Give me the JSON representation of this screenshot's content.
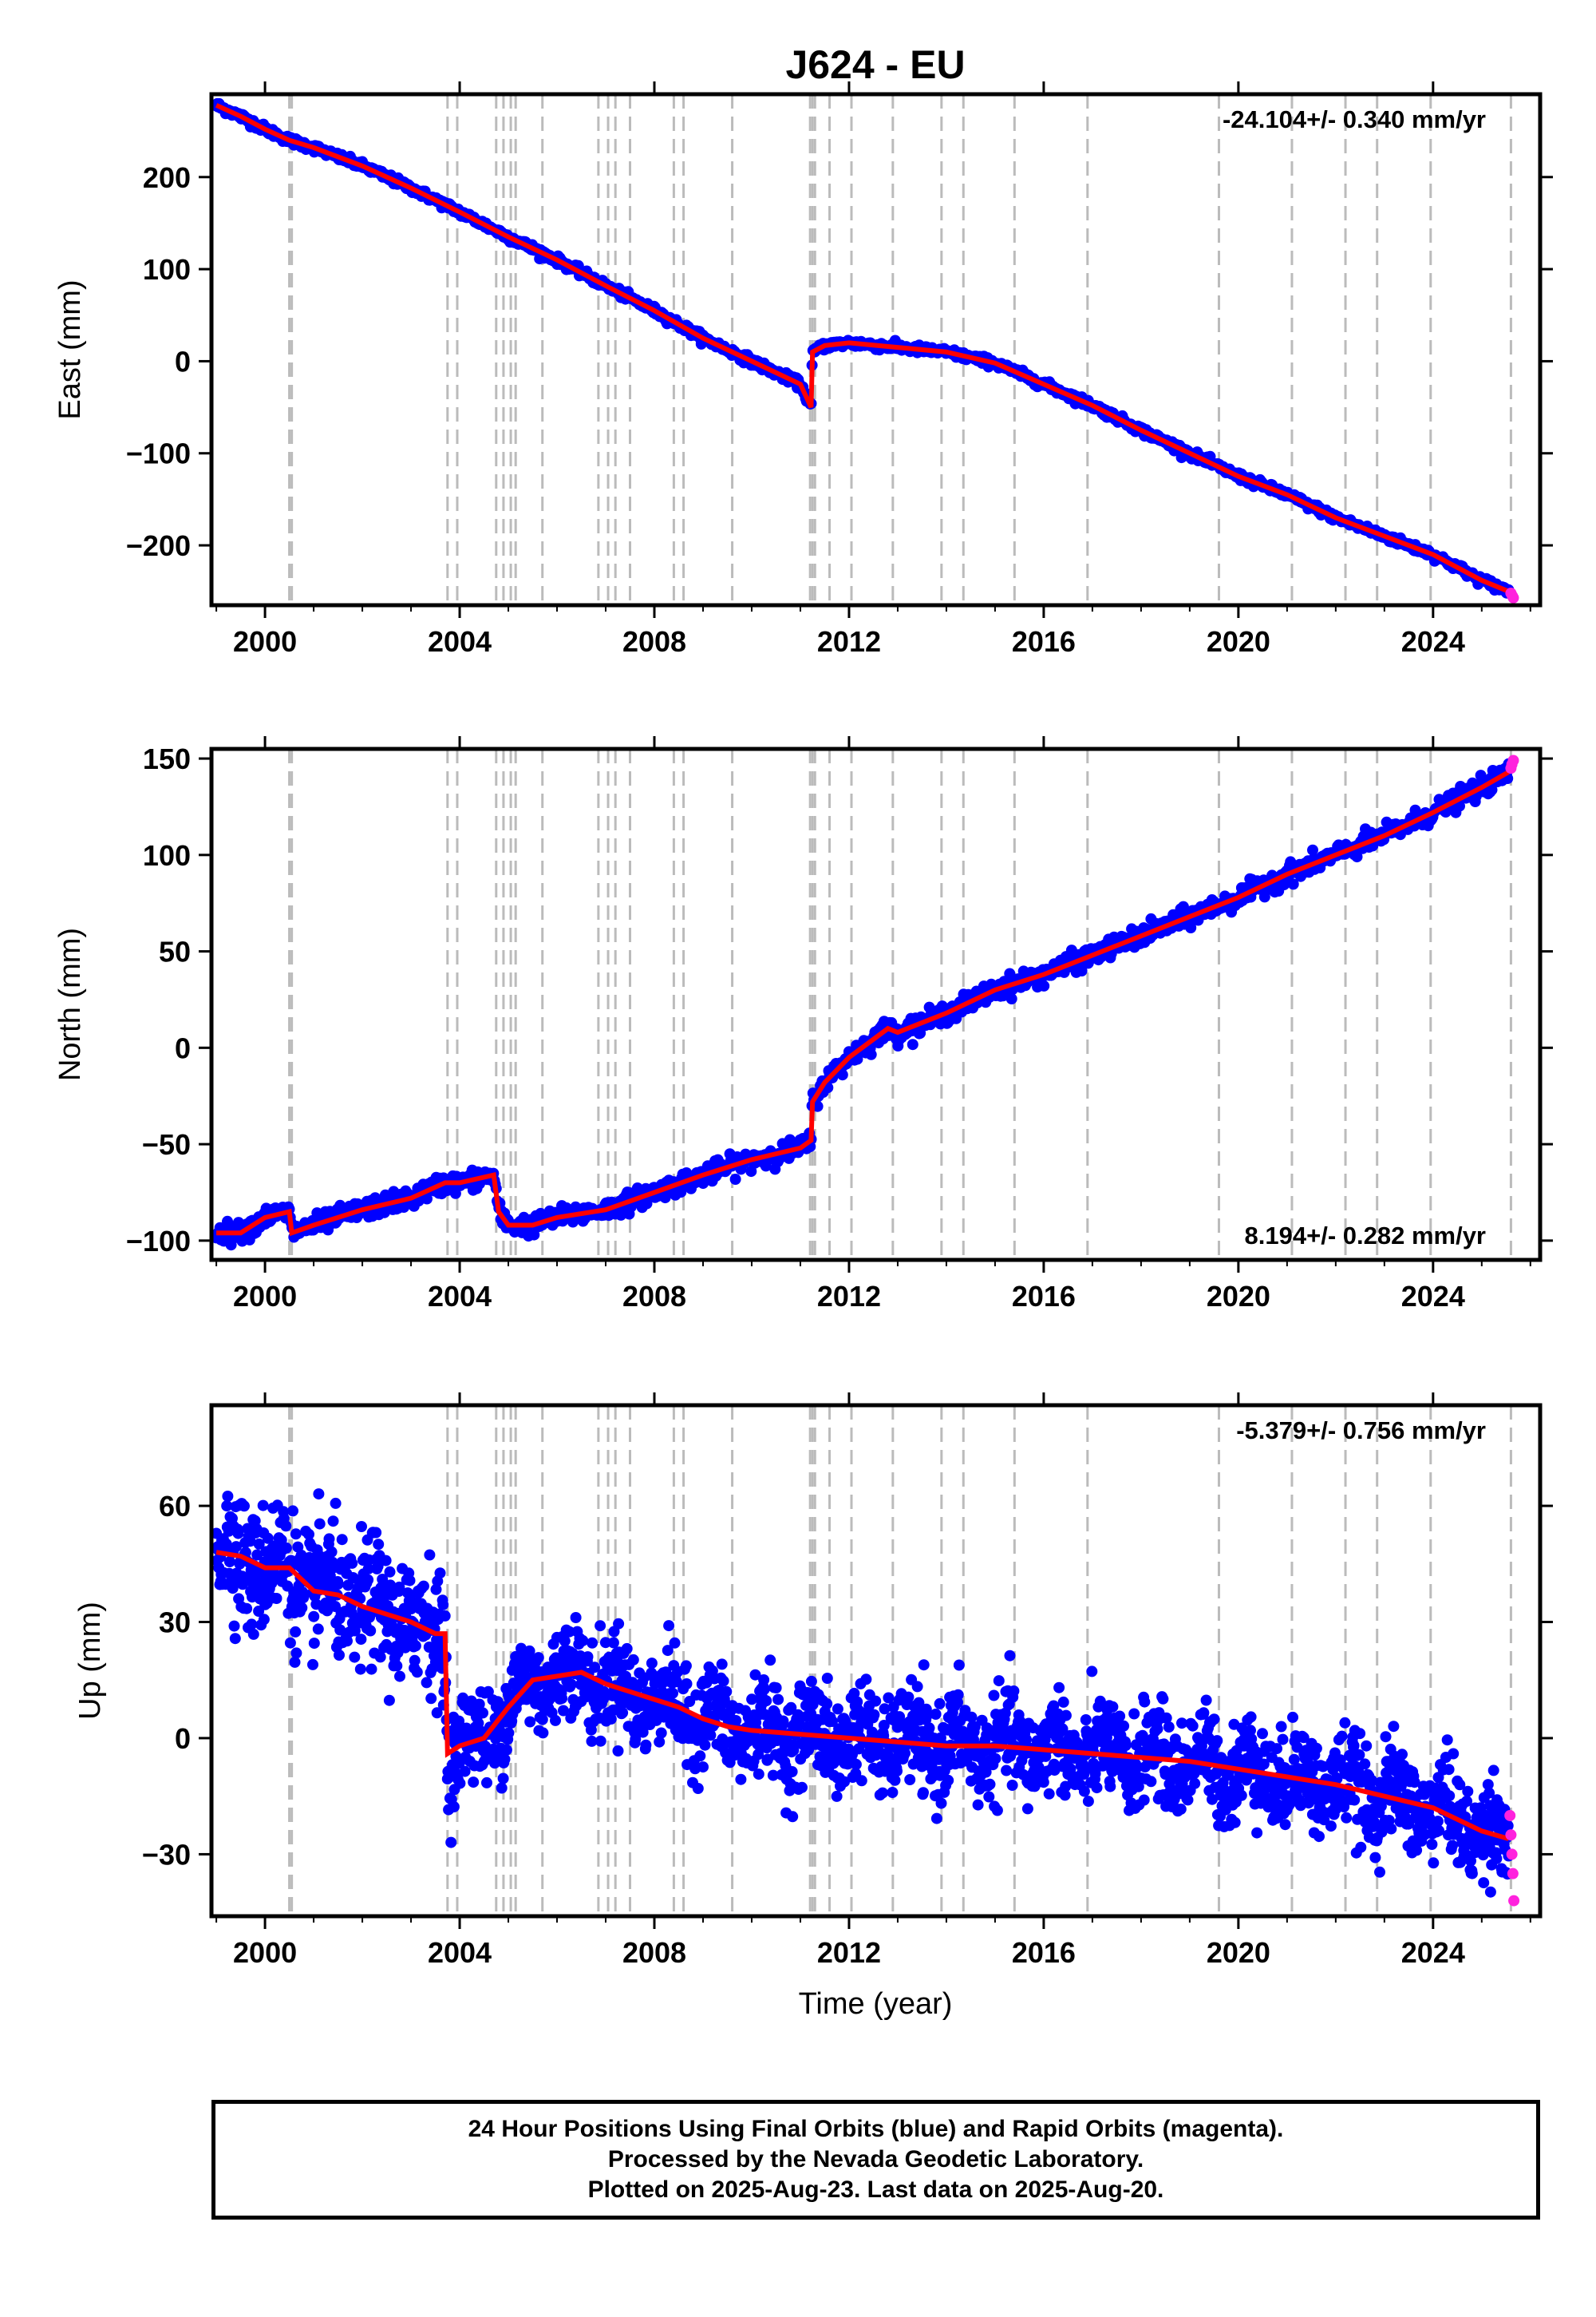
{
  "title": "J624 - EU",
  "xlabel": "Time (year)",
  "colors": {
    "final": "#0000ff",
    "rapid": "#ff22dd",
    "model": "#ff0000",
    "breaks": "#bbbbbb"
  },
  "xlim": [
    1998.9,
    2026.2
  ],
  "xticks": [
    2000,
    2004,
    2008,
    2012,
    2016,
    2020,
    2024
  ],
  "breaks": [
    2000.5,
    2000.55,
    2003.75,
    2003.95,
    2004.75,
    2004.9,
    2005.05,
    2005.15,
    2005.7,
    2006.85,
    2007.05,
    2007.2,
    2007.5,
    2008.4,
    2008.6,
    2009.6,
    2011.2,
    2011.25,
    2011.3,
    2011.6,
    2012.05,
    2012.9,
    2013.9,
    2014.35,
    2015.4,
    2016.9,
    2019.6,
    2021.1,
    2022.2,
    2022.85,
    2023.95,
    2025.6
  ],
  "chart_data": [
    {
      "type": "scatter",
      "ylabel": "East (mm)",
      "ylim": [
        -265,
        290
      ],
      "yticks": [
        200,
        100,
        0,
        -100,
        -200
      ],
      "rate": "-24.104+/- 0.340 mm/yr",
      "rate_position": "top-right",
      "series": [
        {
          "name": "Final Orbits (blue)",
          "x": [
            1999.0,
            1999.5,
            2000.0,
            2000.5,
            2001.0,
            2002.0,
            2003.0,
            2004.0,
            2005.0,
            2006.0,
            2007.0,
            2008.0,
            2009.0,
            2010.0,
            2011.0,
            2011.22,
            2011.25,
            2011.5,
            2012.0,
            2013.0,
            2014.0,
            2015.0,
            2016.0,
            2017.0,
            2018.0,
            2019.0,
            2020.0,
            2021.0,
            2022.0,
            2023.0,
            2024.0,
            2025.0,
            2025.55
          ],
          "y": [
            278,
            266,
            252,
            240,
            232,
            212,
            188,
            162,
            135,
            110,
            82,
            55,
            25,
            0,
            -25,
            -50,
            10,
            17,
            20,
            15,
            10,
            -2,
            -25,
            -48,
            -75,
            -100,
            -125,
            -145,
            -170,
            -190,
            -210,
            -238,
            -250
          ]
        },
        {
          "name": "Rapid Orbits (magenta)",
          "x": [
            2025.6,
            2025.63,
            2025.65
          ],
          "y": [
            -252,
            -255,
            -257
          ]
        }
      ]
    },
    {
      "type": "scatter",
      "ylabel": "North (mm)",
      "ylim": [
        -110,
        155
      ],
      "yticks": [
        150,
        100,
        50,
        0,
        -50,
        -100
      ],
      "rate": "8.194+/- 0.282 mm/yr",
      "rate_position": "bottom-right",
      "series": [
        {
          "name": "Final Orbits (blue)",
          "x": [
            1999.0,
            1999.5,
            2000.0,
            2000.5,
            2000.55,
            2001.0,
            2002.0,
            2003.0,
            2003.7,
            2004.0,
            2004.7,
            2004.8,
            2005.0,
            2005.5,
            2006.0,
            2007.0,
            2008.0,
            2009.0,
            2010.0,
            2011.0,
            2011.22,
            2011.25,
            2011.5,
            2012.0,
            2012.8,
            2013.0,
            2014.0,
            2015.0,
            2016.0,
            2017.0,
            2018.0,
            2019.0,
            2020.0,
            2021.0,
            2022.0,
            2023.0,
            2024.0,
            2025.0,
            2025.55
          ],
          "y": [
            -96,
            -96,
            -88,
            -85,
            -96,
            -92,
            -84,
            -78,
            -70,
            -70,
            -66,
            -85,
            -92,
            -92,
            -88,
            -84,
            -75,
            -66,
            -58,
            -52,
            -48,
            -28,
            -18,
            -5,
            10,
            8,
            18,
            30,
            38,
            48,
            58,
            68,
            78,
            90,
            100,
            110,
            122,
            135,
            143
          ]
        },
        {
          "name": "Rapid Orbits (magenta)",
          "x": [
            2025.6,
            2025.62,
            2025.65
          ],
          "y": [
            145,
            147,
            149
          ]
        }
      ]
    },
    {
      "type": "scatter",
      "ylabel": "Up (mm)",
      "ylim": [
        -46,
        86
      ],
      "yticks": [
        60,
        30,
        0,
        -30
      ],
      "rate": "-5.379+/- 0.756 mm/yr",
      "rate_position": "top-right",
      "series": [
        {
          "name": "Final Orbits (blue)",
          "x": [
            1999.0,
            1999.5,
            2000.0,
            2000.5,
            2001.0,
            2001.5,
            2002.0,
            2002.5,
            2003.0,
            2003.5,
            2003.7,
            2003.75,
            2004.0,
            2004.5,
            2005.0,
            2005.5,
            2006.0,
            2006.5,
            2007.0,
            2007.5,
            2008.0,
            2008.5,
            2009.0,
            2009.5,
            2010.0,
            2011.0,
            2012.0,
            2013.0,
            2014.0,
            2015.0,
            2016.0,
            2017.0,
            2018.0,
            2019.0,
            2020.0,
            2021.0,
            2022.0,
            2023.0,
            2024.0,
            2025.0,
            2025.55
          ],
          "y": [
            48,
            47,
            44,
            44,
            38,
            37,
            34,
            32,
            30,
            27,
            27,
            -4,
            -2,
            0,
            8,
            15,
            16,
            17,
            14,
            12,
            10,
            8,
            5,
            3,
            2,
            1,
            0,
            -1,
            -2,
            -2,
            -3,
            -4,
            -5,
            -6,
            -8,
            -10,
            -12,
            -15,
            -18,
            -24,
            -26
          ]
        },
        {
          "name": "Rapid Orbits (magenta)",
          "x": [
            2025.58,
            2025.6,
            2025.62,
            2025.64,
            2025.66
          ],
          "y": [
            -20,
            -25,
            -30,
            -35,
            -42
          ]
        }
      ]
    }
  ],
  "footer": {
    "line1": "24 Hour Positions Using Final Orbits (blue) and Rapid Orbits (magenta).",
    "line2": "Processed by the Nevada Geodetic Laboratory.",
    "line3": "Plotted on 2025-Aug-23. Last data on 2025-Aug-20."
  }
}
